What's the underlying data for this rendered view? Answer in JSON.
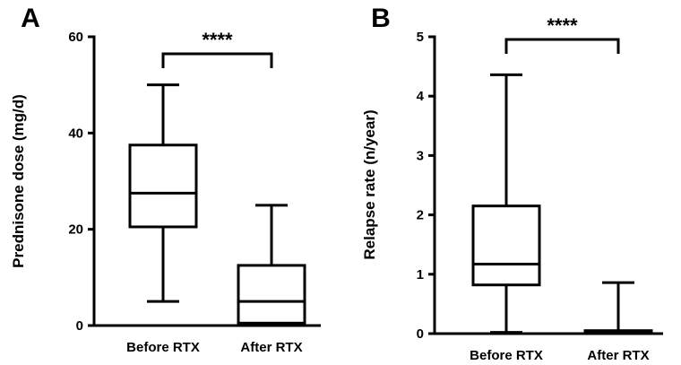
{
  "chart_data": [
    {
      "type": "box",
      "panel_label": "A",
      "ylabel": "Prednisone dose (mg/d)",
      "ylim": [
        0,
        60
      ],
      "yticks": [
        0,
        20,
        40,
        60
      ],
      "categories": [
        "Before RTX",
        "After RTX"
      ],
      "boxes": [
        {
          "min": 5,
          "q1": 20.5,
          "median": 27.5,
          "q3": 37.5,
          "max": 50
        },
        {
          "min": 0.5,
          "q1": 0.5,
          "median": 5,
          "q3": 12.5,
          "max": 25
        }
      ],
      "significance": "****"
    },
    {
      "type": "box",
      "panel_label": "B",
      "ylabel": "Relapse rate (n/year)",
      "ylim": [
        0,
        5
      ],
      "yticks": [
        0,
        1,
        2,
        3,
        4,
        5
      ],
      "categories": [
        "Before RTX",
        "After RTX"
      ],
      "boxes": [
        {
          "min": 0.02,
          "q1": 0.82,
          "median": 1.17,
          "q3": 2.15,
          "max": 4.36
        },
        {
          "min": 0.02,
          "q1": 0.02,
          "median": 0.04,
          "q3": 0.05,
          "max": 0.86
        }
      ],
      "significance": "****"
    }
  ]
}
